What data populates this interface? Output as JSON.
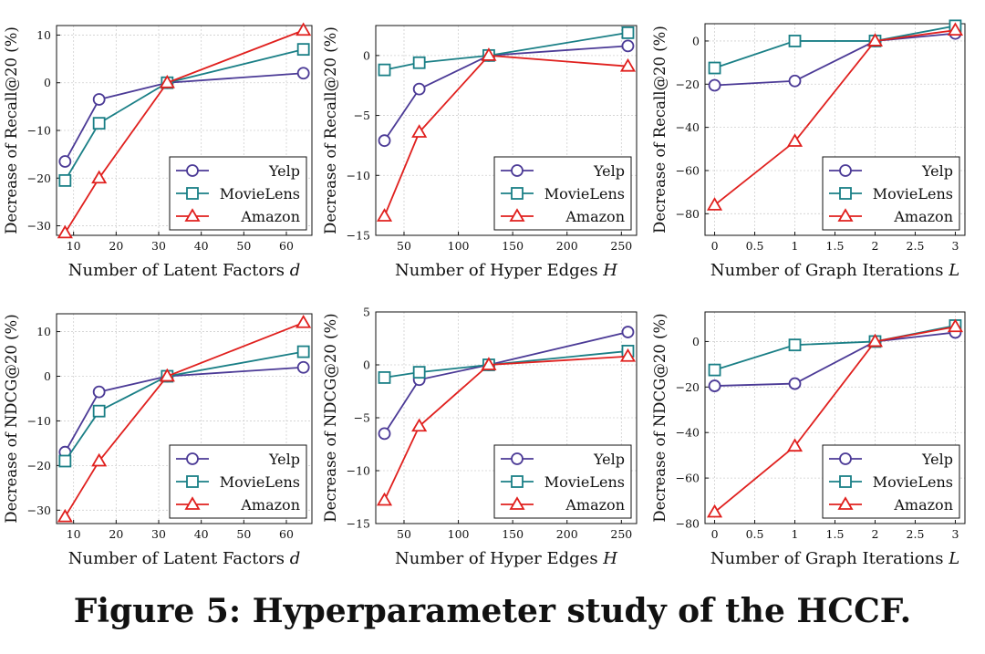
{
  "caption": "Figure 5: Hyperparameter study of the HCCF.",
  "colors": {
    "yelp": "#4b3a96",
    "movielens": "#1a7f86",
    "amazon": "#e0201e"
  },
  "chart_data": [
    {
      "type": "line",
      "xlabel": "Number of Latent Factors d",
      "ylabel": "Decrease of Recall@20 (%)",
      "xlim": [
        6,
        66
      ],
      "ylim": [
        -32,
        12
      ],
      "xticks": [
        10,
        20,
        30,
        40,
        50,
        60
      ],
      "yticks": [
        -30,
        -20,
        -10,
        0,
        10
      ],
      "x": [
        8,
        16,
        32,
        64
      ],
      "grid": true,
      "legend": "bottom-right",
      "series": [
        {
          "name": "Yelp",
          "marker": "circle",
          "values": [
            -16.5,
            -3.5,
            0,
            2
          ]
        },
        {
          "name": "MovieLens",
          "marker": "square",
          "values": [
            -20.5,
            -8.5,
            0,
            7
          ]
        },
        {
          "name": "Amazon",
          "marker": "triangle",
          "values": [
            -31.5,
            -20,
            0,
            11
          ]
        }
      ]
    },
    {
      "type": "line",
      "xlabel": "Number of Hyper Edges H",
      "ylabel": "Decrease of Recall@20 (%)",
      "xlim": [
        24,
        264
      ],
      "ylim": [
        -15,
        2.5
      ],
      "xticks": [
        50,
        100,
        150,
        200,
        250
      ],
      "yticks": [
        -15,
        -10,
        -5,
        0
      ],
      "x": [
        32,
        64,
        128,
        256
      ],
      "grid": true,
      "legend": "bottom-right",
      "series": [
        {
          "name": "Yelp",
          "marker": "circle",
          "values": [
            -7.1,
            -2.8,
            0,
            0.8
          ]
        },
        {
          "name": "MovieLens",
          "marker": "square",
          "values": [
            -1.2,
            -0.6,
            0,
            1.9
          ]
        },
        {
          "name": "Amazon",
          "marker": "triangle",
          "values": [
            -13.4,
            -6.4,
            0,
            -0.9
          ]
        }
      ]
    },
    {
      "type": "line",
      "xlabel": "Number of Graph Iterations L",
      "ylabel": "Decrease of Recall@20 (%)",
      "xlim": [
        -0.12,
        3.12
      ],
      "ylim": [
        -90,
        8
      ],
      "xticks": [
        0,
        0.5,
        1,
        1.5,
        2,
        2.5,
        3
      ],
      "yticks": [
        -80,
        -60,
        -40,
        -20,
        0
      ],
      "x": [
        0,
        1,
        2,
        3
      ],
      "grid": true,
      "legend": "bottom-right",
      "series": [
        {
          "name": "Yelp",
          "marker": "circle",
          "values": [
            -20.5,
            -18.5,
            0,
            3.5
          ]
        },
        {
          "name": "MovieLens",
          "marker": "square",
          "values": [
            -12.5,
            0,
            0,
            7
          ]
        },
        {
          "name": "Amazon",
          "marker": "triangle",
          "values": [
            -76,
            -46.5,
            0,
            5
          ]
        }
      ]
    },
    {
      "type": "line",
      "xlabel": "Number of Latent Factors d",
      "ylabel": "Decrease of NDCG@20 (%)",
      "xlim": [
        6,
        66
      ],
      "ylim": [
        -33,
        14
      ],
      "xticks": [
        10,
        20,
        30,
        40,
        50,
        60
      ],
      "yticks": [
        -30,
        -20,
        -10,
        0,
        10
      ],
      "x": [
        8,
        16,
        32,
        64
      ],
      "grid": true,
      "legend": "bottom-right",
      "series": [
        {
          "name": "Yelp",
          "marker": "circle",
          "values": [
            -17,
            -3.5,
            0,
            2
          ]
        },
        {
          "name": "MovieLens",
          "marker": "square",
          "values": [
            -19,
            -7.8,
            0,
            5.5
          ]
        },
        {
          "name": "Amazon",
          "marker": "triangle",
          "values": [
            -31.5,
            -19,
            0,
            12
          ]
        }
      ]
    },
    {
      "type": "line",
      "xlabel": "Number of Hyper Edges H",
      "ylabel": "Decrease of NDCG@20 (%)",
      "xlim": [
        24,
        264
      ],
      "ylim": [
        -15,
        5
      ],
      "xticks": [
        50,
        100,
        150,
        200,
        250
      ],
      "yticks": [
        -15,
        -10,
        -5,
        0,
        5
      ],
      "x": [
        32,
        64,
        128,
        256
      ],
      "grid": true,
      "legend": "bottom-right",
      "series": [
        {
          "name": "Yelp",
          "marker": "circle",
          "values": [
            -6.5,
            -1.4,
            0,
            3.1
          ]
        },
        {
          "name": "MovieLens",
          "marker": "square",
          "values": [
            -1.2,
            -0.7,
            0,
            1.3
          ]
        },
        {
          "name": "Amazon",
          "marker": "triangle",
          "values": [
            -12.8,
            -5.8,
            0,
            0.8
          ]
        }
      ]
    },
    {
      "type": "line",
      "xlabel": "Number of Graph Iterations L",
      "ylabel": "Decrease of NDCG@20 (%)",
      "xlim": [
        -0.12,
        3.12
      ],
      "ylim": [
        -80,
        13
      ],
      "xticks": [
        0,
        0.5,
        1,
        1.5,
        2,
        2.5,
        3
      ],
      "yticks": [
        -80,
        -60,
        -40,
        -20,
        0
      ],
      "x": [
        0,
        1,
        2,
        3
      ],
      "grid": true,
      "legend": "bottom-right",
      "series": [
        {
          "name": "Yelp",
          "marker": "circle",
          "values": [
            -19.5,
            -18.5,
            0,
            4
          ]
        },
        {
          "name": "MovieLens",
          "marker": "square",
          "values": [
            -12.5,
            -1.5,
            0,
            7
          ]
        },
        {
          "name": "Amazon",
          "marker": "triangle",
          "values": [
            -75,
            -46,
            0,
            6.5
          ]
        }
      ]
    }
  ]
}
